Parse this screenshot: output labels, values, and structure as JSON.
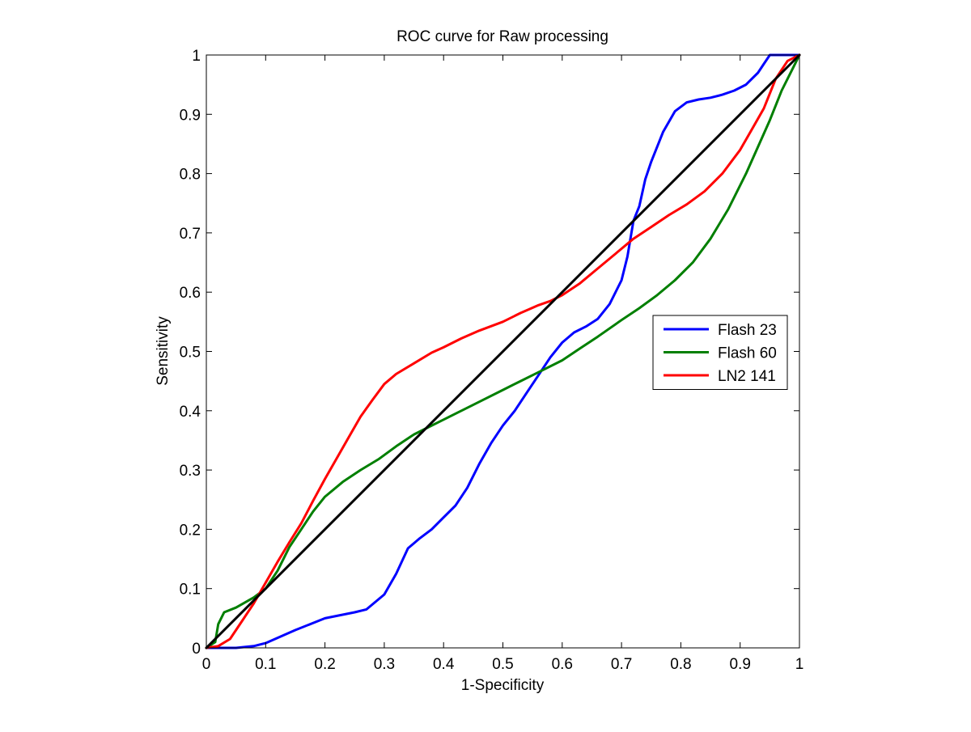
{
  "chart_data": {
    "type": "line",
    "title": "ROC curve for Raw processing",
    "xlabel": "1-Specificity",
    "ylabel": "Sensitivity",
    "xlim": [
      0,
      1
    ],
    "ylim": [
      0,
      1
    ],
    "xticks": [
      "0",
      "0.1",
      "0.2",
      "0.3",
      "0.4",
      "0.5",
      "0.6",
      "0.7",
      "0.8",
      "0.9",
      "1"
    ],
    "yticks": [
      "0",
      "0.1",
      "0.2",
      "0.3",
      "0.4",
      "0.5",
      "0.6",
      "0.7",
      "0.8",
      "0.9",
      "1"
    ],
    "grid": false,
    "legend_position": "right",
    "series": [
      {
        "name": "Flash 23",
        "color": "#0000ff",
        "x": [
          0,
          0.05,
          0.08,
          0.1,
          0.15,
          0.2,
          0.25,
          0.27,
          0.3,
          0.32,
          0.34,
          0.36,
          0.38,
          0.4,
          0.42,
          0.44,
          0.46,
          0.48,
          0.5,
          0.52,
          0.54,
          0.56,
          0.58,
          0.6,
          0.62,
          0.64,
          0.66,
          0.68,
          0.7,
          0.71,
          0.72,
          0.73,
          0.74,
          0.75,
          0.77,
          0.79,
          0.81,
          0.83,
          0.85,
          0.87,
          0.89,
          0.91,
          0.93,
          0.94,
          0.95,
          0.97,
          1.0
        ],
        "y": [
          0,
          0,
          0.003,
          0.008,
          0.03,
          0.05,
          0.06,
          0.065,
          0.09,
          0.125,
          0.168,
          0.185,
          0.2,
          0.22,
          0.24,
          0.27,
          0.31,
          0.345,
          0.375,
          0.4,
          0.43,
          0.46,
          0.49,
          0.515,
          0.532,
          0.542,
          0.555,
          0.58,
          0.62,
          0.66,
          0.72,
          0.745,
          0.79,
          0.82,
          0.87,
          0.905,
          0.92,
          0.925,
          0.928,
          0.933,
          0.94,
          0.95,
          0.97,
          0.985,
          1.0,
          1.0,
          1.0
        ]
      },
      {
        "name": "Flash 60",
        "color": "#007f00",
        "x": [
          0,
          0.015,
          0.02,
          0.03,
          0.05,
          0.08,
          0.1,
          0.12,
          0.14,
          0.16,
          0.18,
          0.2,
          0.23,
          0.26,
          0.29,
          0.32,
          0.35,
          0.38,
          0.4,
          0.43,
          0.46,
          0.5,
          0.53,
          0.56,
          0.6,
          0.63,
          0.66,
          0.7,
          0.73,
          0.76,
          0.79,
          0.82,
          0.85,
          0.88,
          0.91,
          0.93,
          0.95,
          0.97,
          0.99,
          1.0
        ],
        "y": [
          0,
          0.01,
          0.04,
          0.06,
          0.068,
          0.085,
          0.1,
          0.13,
          0.17,
          0.2,
          0.23,
          0.255,
          0.28,
          0.3,
          0.318,
          0.34,
          0.36,
          0.375,
          0.385,
          0.4,
          0.415,
          0.435,
          0.45,
          0.465,
          0.485,
          0.505,
          0.525,
          0.553,
          0.573,
          0.595,
          0.62,
          0.65,
          0.69,
          0.74,
          0.8,
          0.845,
          0.89,
          0.94,
          0.98,
          1.0
        ]
      },
      {
        "name": "LN2 141",
        "color": "#ff0000",
        "x": [
          0,
          0.02,
          0.04,
          0.06,
          0.08,
          0.1,
          0.12,
          0.14,
          0.16,
          0.18,
          0.2,
          0.22,
          0.24,
          0.26,
          0.28,
          0.3,
          0.32,
          0.35,
          0.38,
          0.4,
          0.43,
          0.46,
          0.5,
          0.53,
          0.56,
          0.58,
          0.6,
          0.63,
          0.66,
          0.69,
          0.72,
          0.75,
          0.78,
          0.81,
          0.84,
          0.87,
          0.9,
          0.92,
          0.94,
          0.96,
          0.98,
          1.0
        ],
        "y": [
          0,
          0.003,
          0.015,
          0.045,
          0.075,
          0.11,
          0.145,
          0.178,
          0.21,
          0.248,
          0.285,
          0.32,
          0.355,
          0.39,
          0.418,
          0.445,
          0.462,
          0.48,
          0.498,
          0.507,
          0.522,
          0.535,
          0.55,
          0.565,
          0.578,
          0.585,
          0.595,
          0.615,
          0.64,
          0.665,
          0.69,
          0.71,
          0.73,
          0.748,
          0.77,
          0.8,
          0.84,
          0.875,
          0.91,
          0.96,
          0.99,
          1.0
        ]
      },
      {
        "name": "",
        "color": "#000000",
        "x": [
          0,
          1
        ],
        "y": [
          0,
          1
        ]
      }
    ]
  }
}
